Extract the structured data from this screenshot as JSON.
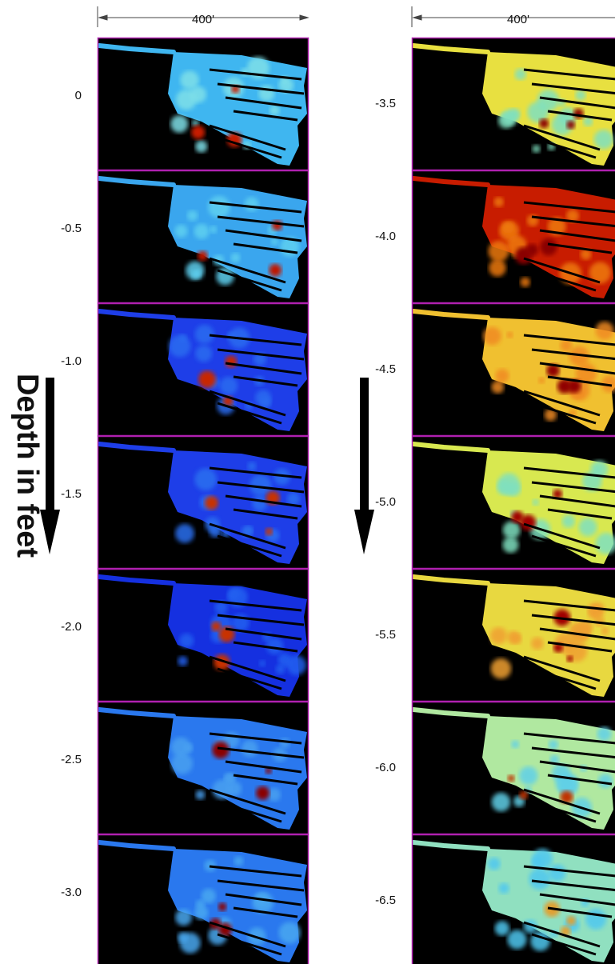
{
  "scale_bars": [
    {
      "label": "400'"
    },
    {
      "label": "400'"
    }
  ],
  "axis_label": "Depth in feet",
  "columns": [
    {
      "depths": [
        "0",
        "-0.5",
        "-1.0",
        "-1.5",
        "-2.0",
        "-2.5",
        "-3.0"
      ]
    },
    {
      "depths": [
        "-3.5",
        "-4.0",
        "-4.5",
        "-5.0",
        "-5.5",
        "-6.0",
        "-6.5"
      ]
    }
  ]
}
